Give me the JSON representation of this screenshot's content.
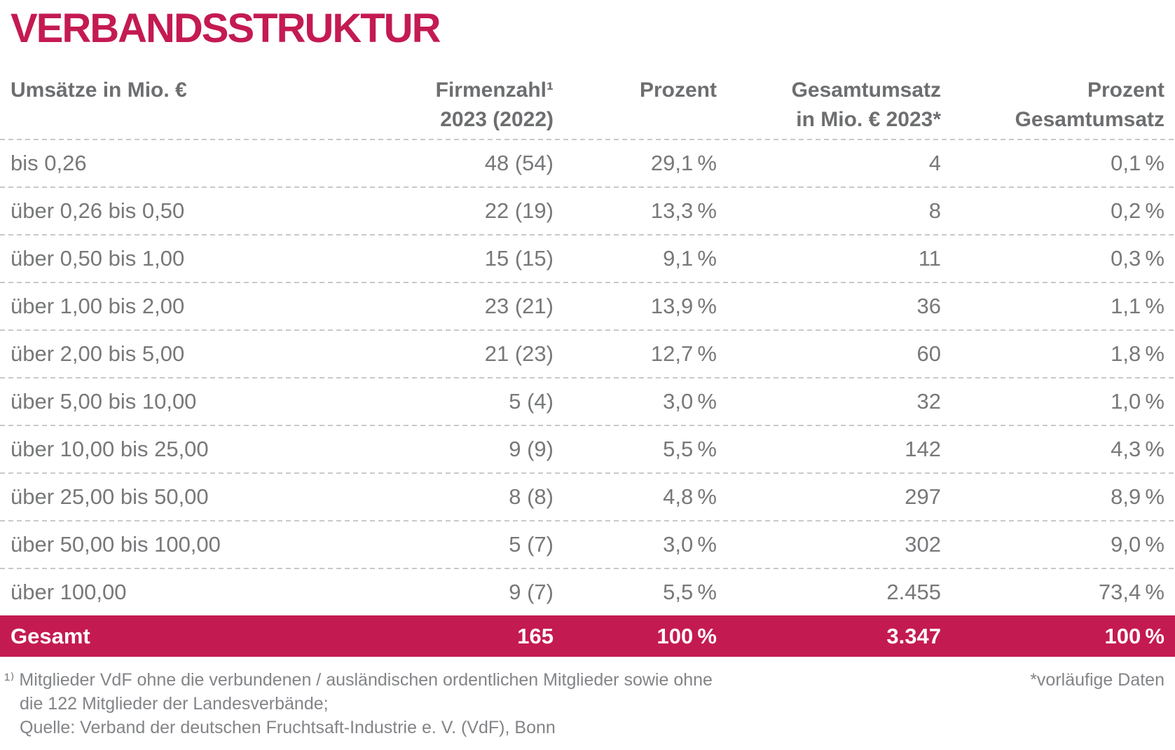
{
  "colors": {
    "accent": "#c41a52",
    "header-text": "#6d6e70",
    "body-text": "#77787a",
    "footnote-text": "#828487",
    "separator": "#c9c9c9",
    "total-text": "#ffffff"
  },
  "chart_data": {
    "type": "table",
    "title": "VERBANDSSTRUKTUR",
    "columns": [
      {
        "label": "Umsätze in Mio. €",
        "align": "left"
      },
      {
        "label": "Firmenzahl¹\n2023 (2022)",
        "align": "right"
      },
      {
        "label": "Prozent",
        "align": "right"
      },
      {
        "label": "Gesamtumsatz\nin Mio. € 2023*",
        "align": "right"
      },
      {
        "label": "Prozent\nGesamtumsatz",
        "align": "right"
      }
    ],
    "rows": [
      [
        "bis 0,26",
        "48 (54)",
        "29,1 %",
        "4",
        "0,1 %"
      ],
      [
        "über 0,26 bis 0,50",
        "22 (19)",
        "13,3 %",
        "8",
        "0,2 %"
      ],
      [
        "über 0,50 bis 1,00",
        "15 (15)",
        "9,1 %",
        "11",
        "0,3 %"
      ],
      [
        "über 1,00 bis 2,00",
        "23 (21)",
        "13,9 %",
        "36",
        "1,1 %"
      ],
      [
        "über 2,00 bis 5,00",
        "21 (23)",
        "12,7 %",
        "60",
        "1,8 %"
      ],
      [
        "über 5,00 bis 10,00",
        "5 (4)",
        "3,0 %",
        "32",
        "1,0 %"
      ],
      [
        "über 10,00 bis 25,00",
        "9 (9)",
        "5,5 %",
        "142",
        "4,3 %"
      ],
      [
        "über 25,00 bis 50,00",
        "8 (8)",
        "4,8 %",
        "297",
        "8,9 %"
      ],
      [
        "über 50,00 bis 100,00",
        "5 (7)",
        "3,0 %",
        "302",
        "9,0 %"
      ],
      [
        "über 100,00",
        "9 (7)",
        "5,5 %",
        "2.455",
        "73,4 %"
      ]
    ],
    "total_row": [
      "Gesamt",
      "165",
      "100 %",
      "3.347",
      "100 %"
    ],
    "footnote_marker": "¹⁾",
    "footnote_line1": " Mitglieder VdF ohne die verbundenen / ausländischen ordentlichen Mitglieder sowie ohne",
    "footnote_line2": "die 122 Mitglieder der Landesverbände;",
    "footnote_line3": "Quelle: Verband der deutschen Fruchtsaft-Industrie e. V. (VdF), Bonn",
    "asterisk_note": "*vorläufige Daten"
  }
}
